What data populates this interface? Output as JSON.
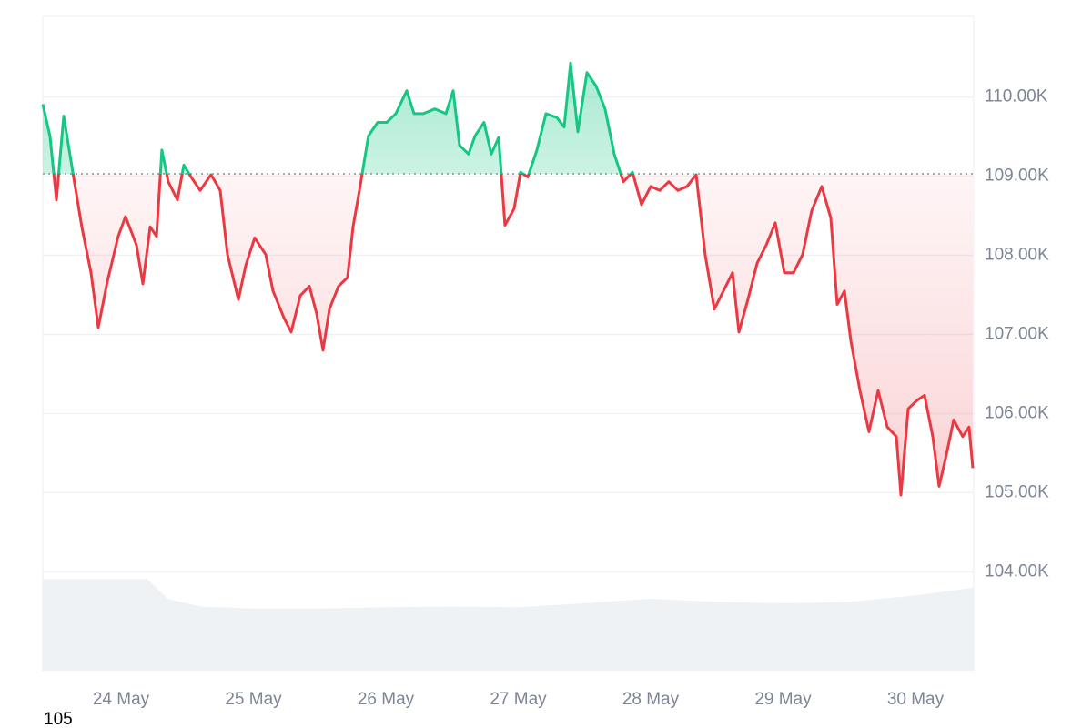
{
  "chart_data": {
    "type": "baseline-area",
    "x": [
      23.409,
      23.464,
      23.512,
      23.567,
      23.636,
      23.704,
      23.773,
      23.828,
      23.897,
      23.979,
      24.034,
      24.117,
      24.165,
      24.22,
      24.268,
      24.309,
      24.357,
      24.426,
      24.474,
      24.529,
      24.598,
      24.68,
      24.749,
      24.804,
      24.887,
      24.942,
      25.01,
      25.093,
      25.148,
      25.23,
      25.285,
      25.354,
      25.423,
      25.478,
      25.526,
      25.574,
      25.643,
      25.711,
      25.753,
      25.801,
      25.869,
      25.938,
      26.007,
      26.076,
      26.158,
      26.213,
      26.282,
      26.371,
      26.454,
      26.509,
      26.557,
      26.625,
      26.674,
      26.742,
      26.797,
      26.852,
      26.9,
      26.969,
      27.017,
      27.072,
      27.141,
      27.21,
      27.292,
      27.347,
      27.395,
      27.45,
      27.519,
      27.588,
      27.656,
      27.725,
      27.794,
      27.863,
      27.931,
      28.0,
      28.069,
      28.137,
      28.206,
      28.275,
      28.344,
      28.412,
      28.481,
      28.55,
      28.619,
      28.667,
      28.735,
      28.804,
      28.873,
      28.942,
      29.01,
      29.079,
      29.148,
      29.216,
      29.292,
      29.361,
      29.409,
      29.464,
      29.512,
      29.581,
      29.649,
      29.718,
      29.787,
      29.856,
      29.89,
      29.945,
      30.014,
      30.069,
      30.131,
      30.179,
      30.234,
      30.289,
      30.357,
      30.405,
      30.433
    ],
    "values": [
      109910,
      109500,
      108700,
      109760,
      109050,
      108360,
      107780,
      107090,
      107670,
      108240,
      108490,
      108130,
      107640,
      108360,
      108240,
      109330,
      108930,
      108700,
      109140,
      108990,
      108820,
      109020,
      108820,
      108010,
      107440,
      107870,
      108220,
      108010,
      107550,
      107210,
      107030,
      107490,
      107610,
      107260,
      106800,
      107320,
      107610,
      107720,
      108360,
      108820,
      109510,
      109680,
      109680,
      109790,
      110080,
      109790,
      109790,
      109850,
      109790,
      110080,
      109390,
      109280,
      109510,
      109680,
      109280,
      109490,
      108380,
      108590,
      109050,
      108990,
      109330,
      109790,
      109740,
      109620,
      110430,
      109560,
      110310,
      110140,
      109850,
      109280,
      108930,
      109050,
      108640,
      108870,
      108820,
      108930,
      108820,
      108870,
      109020,
      108010,
      107320,
      107550,
      107780,
      107030,
      107440,
      107900,
      108130,
      108410,
      107780,
      107780,
      108010,
      108560,
      108870,
      108470,
      107380,
      107550,
      106920,
      106290,
      105770,
      106290,
      105830,
      105710,
      104970,
      106060,
      106170,
      106230,
      105710,
      105080,
      105480,
      105920,
      105710,
      105830,
      105310
    ],
    "baseline": 109030,
    "up_color": "#16c784",
    "down_color": "#ea3943",
    "xlim": [
      23.409,
      30.44
    ],
    "xticks": [
      {
        "value": 24,
        "label": "24 May"
      },
      {
        "value": 25,
        "label": "25 May"
      },
      {
        "value": 26,
        "label": "26 May"
      },
      {
        "value": 27,
        "label": "27 May"
      },
      {
        "value": 28,
        "label": "28 May"
      },
      {
        "value": 29,
        "label": "29 May"
      },
      {
        "value": 30,
        "label": "30 May"
      }
    ],
    "ylim": [
      102750,
      111020
    ],
    "yticks": [
      {
        "value": 104000,
        "label": "104.00K"
      },
      {
        "value": 105000,
        "label": "105.00K"
      },
      {
        "value": 106000,
        "label": "106.00K"
      },
      {
        "value": 107000,
        "label": "107.00K"
      },
      {
        "value": 108000,
        "label": "108.00K"
      },
      {
        "value": 109000,
        "label": "109.00K"
      },
      {
        "value": 110000,
        "label": "110.00K"
      }
    ],
    "grid": true,
    "volume": {
      "axis": "y2",
      "color": "#eff2f5",
      "x": [
        23.409,
        24.2,
        24.35,
        24.6,
        25.0,
        25.5,
        26.0,
        26.5,
        27.0,
        27.5,
        28.0,
        28.5,
        29.0,
        29.5,
        30.0,
        30.44
      ],
      "values": [
        14,
        14,
        11,
        9.8,
        9.5,
        9.5,
        9.7,
        9.8,
        9.7,
        10.3,
        11,
        10.5,
        10.3,
        10.5,
        11.5,
        12.7
      ]
    },
    "y2lim": [
      0,
      100
    ],
    "footnote": "105"
  }
}
